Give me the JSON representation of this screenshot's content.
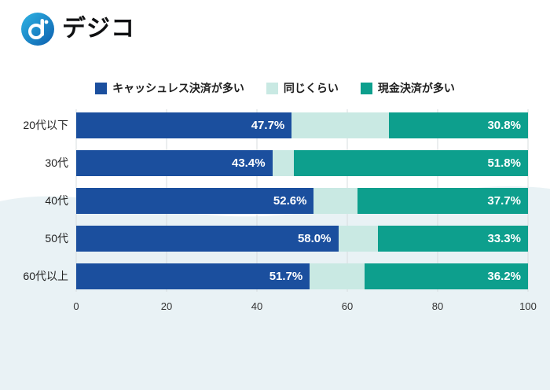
{
  "header": {
    "brand": "デジコ",
    "logo_icon": "digico-d-icon"
  },
  "colors": {
    "cashless_blue": "#1b4f9e",
    "even_mint": "#c9e9e3",
    "cash_teal": "#0d9f8d",
    "wave_background": "#e9f2f5",
    "gridline": "#d7dcdf"
  },
  "chart_data": {
    "type": "bar",
    "orientation": "horizontal",
    "stacked": true,
    "title": "",
    "xlabel": "",
    "ylabel": "",
    "categories": [
      "20代以下",
      "30代",
      "40代",
      "50代",
      "60代以上"
    ],
    "series": [
      {
        "name": "キャッシュレス決済が多い",
        "color": "#1b4f9e",
        "values": [
          47.7,
          43.4,
          52.6,
          58.0,
          51.7
        ],
        "show_labels": true,
        "label_color": "#ffffff"
      },
      {
        "name": "同じくらい",
        "color": "#c9e9e3",
        "values": [
          21.5,
          4.8,
          9.7,
          8.7,
          12.1
        ],
        "show_labels": false,
        "label_color": ""
      },
      {
        "name": "現金決済が多い",
        "color": "#0d9f8d",
        "values": [
          30.8,
          51.8,
          37.7,
          33.3,
          36.2
        ],
        "show_labels": true,
        "label_color": "#ffffff"
      }
    ],
    "xlim": [
      0,
      100
    ],
    "x_ticks": [
      0,
      20,
      40,
      60,
      80,
      100
    ],
    "grid": true,
    "legend_position": "top"
  }
}
